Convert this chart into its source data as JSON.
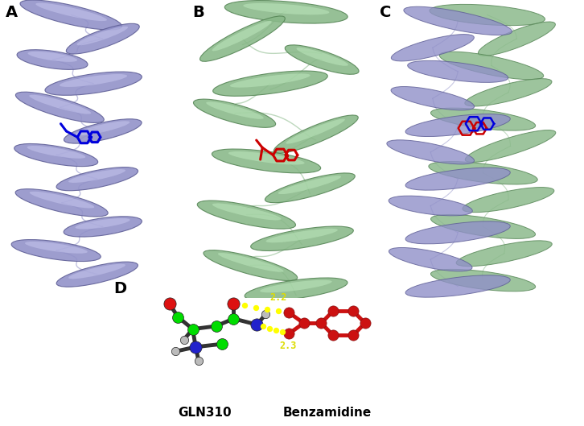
{
  "panel_label_fontsize": 14,
  "panel_label_fontweight": "bold",
  "background_color": "#ffffff",
  "protein_A_color": "#9090c8",
  "protein_B_color": "#88b888",
  "ligand_A_color": "#0000dd",
  "ligand_B_color": "#cc0000",
  "hbond_color": "#ffff00",
  "label_GLN310": "GLN310",
  "label_Benzamidine": "Benzamidine",
  "label_fontsize": 11,
  "hbond_distance_1": "2.2",
  "hbond_distance_2": "2.3",
  "hbond_distance_fontsize": 8.5,
  "hbond_color_text": "#dddd00",
  "fig_width": 7.26,
  "fig_height": 5.29,
  "dpi": 100
}
